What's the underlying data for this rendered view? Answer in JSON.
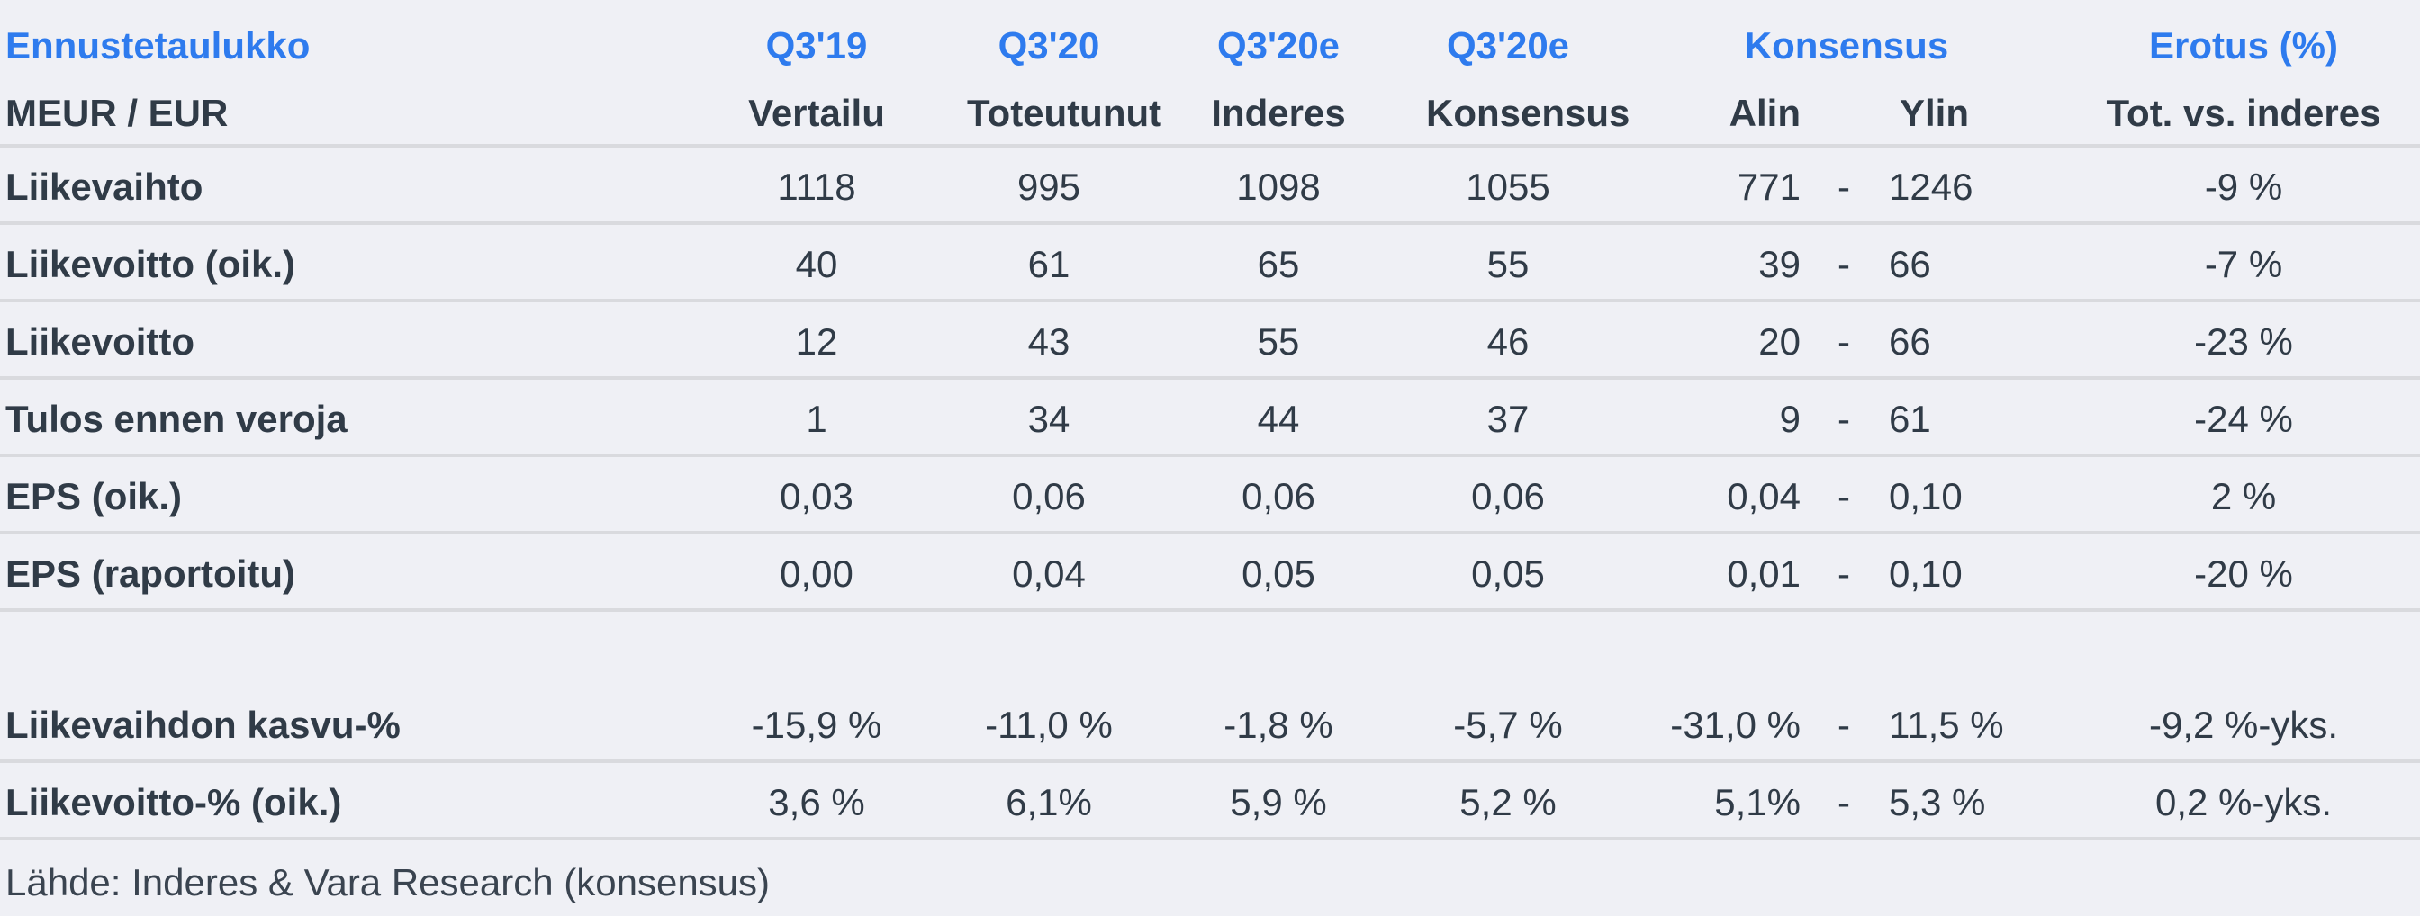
{
  "chart_data": {
    "type": "table",
    "title": "Ennustetaulukko",
    "unit": "MEUR / EUR",
    "group_headers": [
      "Q3'19",
      "Q3'20",
      "Q3'20e",
      "Q3'20e",
      "Konsensus",
      "Erotus (%)"
    ],
    "columns": [
      "Vertailu",
      "Toteutunut",
      "Inderes",
      "Konsensus",
      "Alin",
      "Ylin",
      "Tot. vs. inderes"
    ],
    "range_separator": "-",
    "rows": [
      {
        "label": "Liikevaihto",
        "values": [
          "1118",
          "995",
          "1098",
          "1055",
          "771",
          "1246",
          "-9 %"
        ]
      },
      {
        "label": "Liikevoitto (oik.)",
        "values": [
          "40",
          "61",
          "65",
          "55",
          "39",
          "66",
          "-7 %"
        ]
      },
      {
        "label": "Liikevoitto",
        "values": [
          "12",
          "43",
          "55",
          "46",
          "20",
          "66",
          "-23 %"
        ]
      },
      {
        "label": "Tulos ennen veroja",
        "values": [
          "1",
          "34",
          "44",
          "37",
          "9",
          "61",
          "-24 %"
        ]
      },
      {
        "label": "EPS (oik.)",
        "values": [
          "0,03",
          "0,06",
          "0,06",
          "0,06",
          "0,04",
          "0,10",
          "2 %"
        ]
      },
      {
        "label": "EPS (raportoitu)",
        "values": [
          "0,00",
          "0,04",
          "0,05",
          "0,05",
          "0,01",
          "0,10",
          "-20 %"
        ]
      }
    ],
    "growth_rows": [
      {
        "label": "Liikevaihdon kasvu-%",
        "values": [
          "-15,9 %",
          "-11,0 %",
          "-1,8 %",
          "-5,7 %",
          "-31,0 %",
          "11,5 %",
          "-9,2 %-yks."
        ]
      },
      {
        "label": "Liikevoitto-% (oik.)",
        "values": [
          "3,6 %",
          "6,1%",
          "5,9 %",
          "5,2 %",
          "5,1%",
          "5,3 %",
          "0,2 %-yks."
        ]
      }
    ],
    "source": "Lähde: Inderes & Vara Research  (konsensus)"
  },
  "colors": {
    "accent_blue": "#2e7bee",
    "text_dark": "#303b47",
    "background": "#eff0f5",
    "separator": "#d9dade"
  }
}
